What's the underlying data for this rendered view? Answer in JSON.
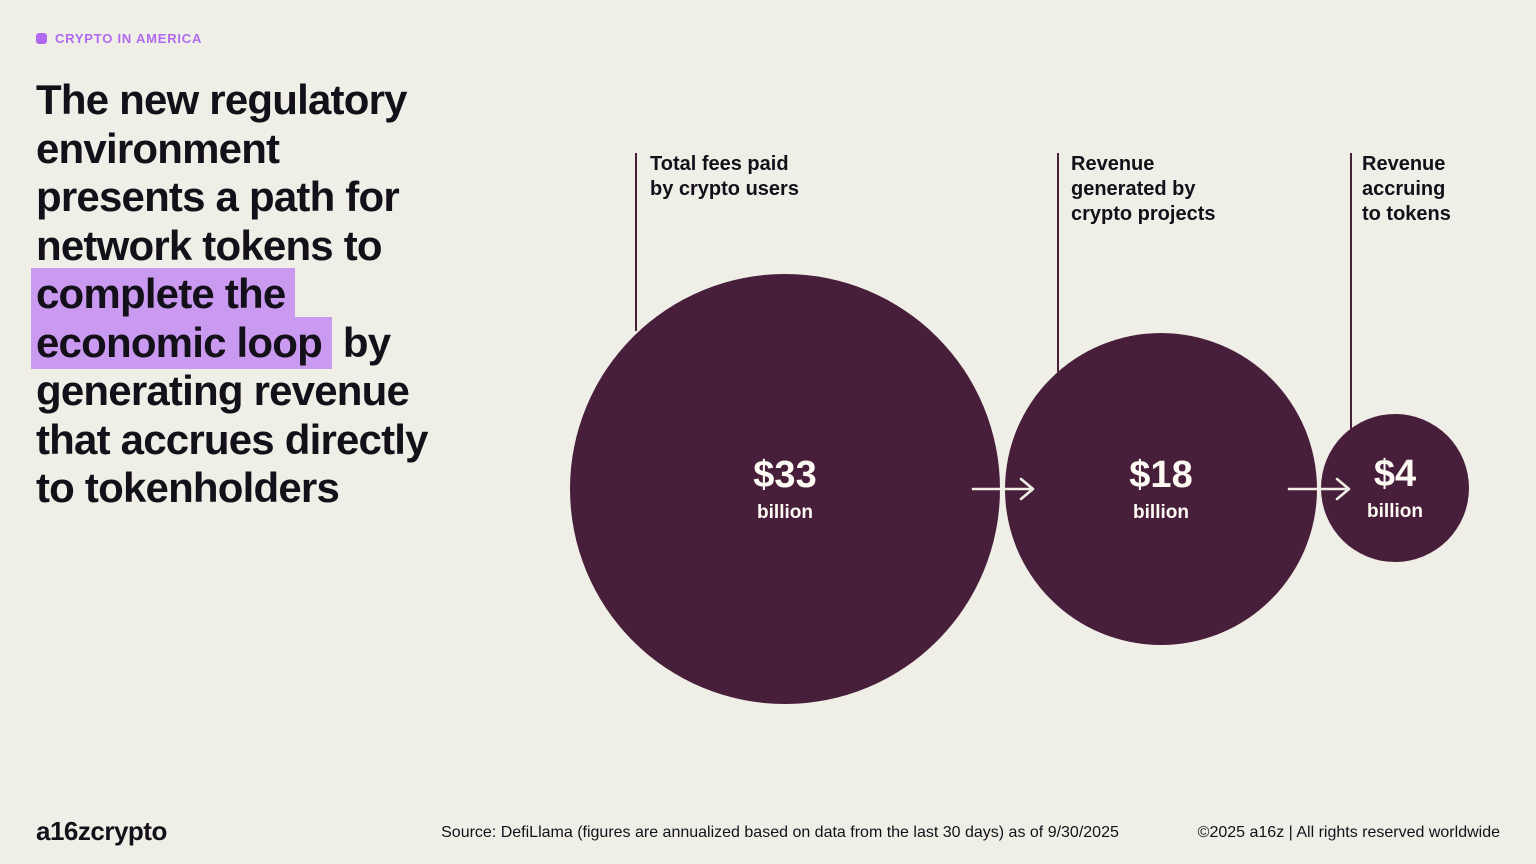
{
  "eyebrow": {
    "label": "CRYPTO IN AMERICA"
  },
  "headline": {
    "full_text": "The new regulatory environment presents a path for network tokens to complete the economic loop by generating revenue that accrues directly to tokenholders",
    "highlighted_phrase": "complete the economic loop",
    "lines": [
      [
        {
          "t": "The new regulatory",
          "h": false
        }
      ],
      [
        {
          "t": "environment",
          "h": false
        }
      ],
      [
        {
          "t": "presents a path for",
          "h": false
        }
      ],
      [
        {
          "t": "network tokens to",
          "h": false
        }
      ],
      [
        {
          "t": "complete the",
          "h": true
        }
      ],
      [
        {
          "t": "economic loop",
          "h": true
        },
        {
          "t": " by",
          "h": false
        }
      ],
      [
        {
          "t": "generating revenue",
          "h": false
        }
      ],
      [
        {
          "t": "that accrues directly",
          "h": false
        }
      ],
      [
        {
          "t": "to tokenholders",
          "h": false
        }
      ]
    ]
  },
  "chart_data": {
    "type": "proportional-circles",
    "description": "Three area-proportional circles connected by arrows showing a left-to-right funnel flow",
    "unit": "USD billions (annualized)",
    "items": [
      {
        "label": "Total fees paid by crypto users",
        "label_lines": [
          "Total fees paid",
          "by crypto users"
        ],
        "value": 33,
        "value_display": "$33",
        "unit_display": "billion"
      },
      {
        "label": "Revenue generated by crypto projects",
        "label_lines": [
          "Revenue",
          "generated by",
          "crypto projects"
        ],
        "value": 18,
        "value_display": "$18",
        "unit_display": "billion"
      },
      {
        "label": "Revenue accruing to tokens",
        "label_lines": [
          "Revenue",
          "accruing",
          "to tokens"
        ],
        "value": 4,
        "value_display": "$4",
        "unit_display": "billion"
      }
    ],
    "colors": {
      "circle": "#481f3b",
      "background": "#f0efe7",
      "value_text": "#fcfaf3",
      "accent_purple": "#b06af0",
      "highlight": "#ca99f0"
    }
  },
  "footer": {
    "logo": "a16zcrypto",
    "source": "Source: DefiLlama (figures are annualized based on data from the last 30 days) as of 9/30/2025",
    "copyright": "©2025 a16z | All rights reserved worldwide"
  }
}
